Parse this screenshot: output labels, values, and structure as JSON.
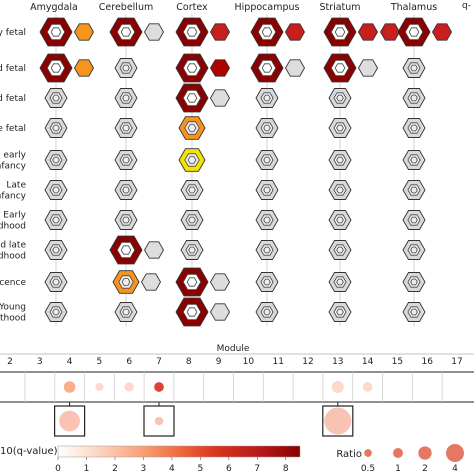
{
  "regions": [
    "Amygdala",
    "Cerebellum",
    "Cortex",
    "Hippocampus",
    "Striatum",
    "Thalamus"
  ],
  "stages": [
    "y fetal",
    "d fetal",
    "d fetal",
    "e fetal",
    "l early\nnfancy",
    "Late\nnfancy",
    "Early\ndhood",
    "d late\ndhood",
    "scence",
    "Young\nlthood"
  ],
  "top_right_label": "q-",
  "module_axis": {
    "label": "Module",
    "ticks": [
      "2",
      "3",
      "4",
      "5",
      "6",
      "7",
      "8",
      "9",
      "10",
      "11",
      "12",
      "13",
      "14",
      "15",
      "16",
      "17"
    ]
  },
  "colorbar": {
    "label": "10(q-value)",
    "ticks": [
      "0",
      "1",
      "2",
      "3",
      "4",
      "5",
      "6",
      "7",
      "8"
    ],
    "range": [
      0,
      8.5
    ],
    "stops": [
      "#ffffff",
      "#fcd5c4",
      "#f8a57c",
      "#ef6a3d",
      "#d7301f",
      "#b71a1a",
      "#8b0000"
    ]
  },
  "ratio_legend": {
    "label": "Ratio",
    "ticks": [
      "0.5",
      "1",
      "2",
      "4"
    ],
    "sizes": [
      0.5,
      1,
      2,
      4
    ]
  },
  "chart_data": {
    "type": "heatmap",
    "grid_note": "hexagon rows = developmental stages, groups = brain regions",
    "cells": [
      {
        "r": 0,
        "s": 0,
        "q": 8,
        "ring": "dark",
        "neighbors": [
          {
            "q": 5,
            "color": "#f7941d"
          }
        ]
      },
      {
        "r": 0,
        "s": 1,
        "q": 8,
        "ring": "light",
        "neighbors": [
          {
            "q": 0,
            "color": "#dddddd"
          }
        ]
      },
      {
        "r": 0,
        "s": 2,
        "q": 8,
        "ring": "dark",
        "neighbors": [
          {
            "q": 7,
            "color": "#c81e1e"
          }
        ]
      },
      {
        "r": 0,
        "s": 3,
        "q": 8,
        "ring": "dark",
        "neighbors": [
          {
            "q": 7,
            "color": "#c81e1e"
          }
        ]
      },
      {
        "r": 0,
        "s": 4,
        "q": 8,
        "ring": "light",
        "neighbors": [
          {
            "q": 7,
            "color": "#c81e1e"
          },
          {
            "q": 7,
            "color": "#c81e1e"
          }
        ]
      },
      {
        "r": 0,
        "s": 5,
        "q": 8,
        "ring": "light",
        "neighbors": [
          {
            "q": 7,
            "color": "#c81e1e"
          }
        ]
      },
      {
        "r": 1,
        "s": 0,
        "q": 8,
        "ring": "dark",
        "neighbors": [
          {
            "q": 5,
            "color": "#f7941d"
          }
        ]
      },
      {
        "r": 1,
        "s": 1,
        "q": 0,
        "ring": "light",
        "neighbors": []
      },
      {
        "r": 1,
        "s": 2,
        "q": 8,
        "ring": "dark",
        "neighbors": [
          {
            "q": 8,
            "color": "#b00000"
          }
        ]
      },
      {
        "r": 1,
        "s": 3,
        "q": 8,
        "ring": "dark",
        "neighbors": [
          {
            "q": 0,
            "color": "#dddddd"
          }
        ]
      },
      {
        "r": 1,
        "s": 4,
        "q": 8,
        "ring": "dark",
        "neighbors": [
          {
            "q": 0,
            "color": "#dddddd"
          }
        ]
      },
      {
        "r": 1,
        "s": 5,
        "q": 0,
        "ring": "light",
        "neighbors": []
      },
      {
        "r": 2,
        "s": 0,
        "q": 0,
        "neighbors": []
      },
      {
        "r": 2,
        "s": 1,
        "q": 0,
        "neighbors": []
      },
      {
        "r": 2,
        "s": 2,
        "q": 8,
        "ring": "dark",
        "neighbors": [
          {
            "q": 0,
            "color": "#dddddd"
          }
        ]
      },
      {
        "r": 2,
        "s": 3,
        "q": 0,
        "neighbors": []
      },
      {
        "r": 2,
        "s": 4,
        "q": 0,
        "neighbors": []
      },
      {
        "r": 2,
        "s": 5,
        "q": 0,
        "neighbors": []
      },
      {
        "r": 3,
        "s": 0,
        "q": 0,
        "neighbors": []
      },
      {
        "r": 3,
        "s": 1,
        "q": 0,
        "neighbors": []
      },
      {
        "r": 3,
        "s": 2,
        "q": 5,
        "ring": "orange",
        "neighbors": []
      },
      {
        "r": 3,
        "s": 3,
        "q": 0,
        "neighbors": []
      },
      {
        "r": 3,
        "s": 4,
        "q": 0,
        "neighbors": []
      },
      {
        "r": 3,
        "s": 5,
        "q": 0,
        "neighbors": []
      },
      {
        "r": 4,
        "s": 0,
        "q": 0,
        "neighbors": []
      },
      {
        "r": 4,
        "s": 1,
        "q": 0,
        "neighbors": []
      },
      {
        "r": 4,
        "s": 2,
        "q": 3,
        "ring": "yellow",
        "neighbors": []
      },
      {
        "r": 4,
        "s": 3,
        "q": 0,
        "neighbors": []
      },
      {
        "r": 4,
        "s": 4,
        "q": 0,
        "neighbors": []
      },
      {
        "r": 4,
        "s": 5,
        "q": 0,
        "neighbors": []
      },
      {
        "r": 5,
        "s": 0,
        "q": 0,
        "neighbors": []
      },
      {
        "r": 5,
        "s": 1,
        "q": 0,
        "neighbors": []
      },
      {
        "r": 5,
        "s": 2,
        "q": 0,
        "neighbors": []
      },
      {
        "r": 5,
        "s": 3,
        "q": 0,
        "neighbors": []
      },
      {
        "r": 5,
        "s": 4,
        "q": 0,
        "neighbors": []
      },
      {
        "r": 5,
        "s": 5,
        "q": 0,
        "neighbors": []
      },
      {
        "r": 6,
        "s": 0,
        "q": 0,
        "neighbors": []
      },
      {
        "r": 6,
        "s": 1,
        "q": 0,
        "neighbors": []
      },
      {
        "r": 6,
        "s": 2,
        "q": 0,
        "neighbors": []
      },
      {
        "r": 6,
        "s": 3,
        "q": 0,
        "neighbors": []
      },
      {
        "r": 6,
        "s": 4,
        "q": 0,
        "neighbors": []
      },
      {
        "r": 6,
        "s": 5,
        "q": 0,
        "neighbors": []
      },
      {
        "r": 7,
        "s": 0,
        "q": 0,
        "neighbors": []
      },
      {
        "r": 7,
        "s": 1,
        "q": 8,
        "ring": "dark",
        "neighbors": [
          {
            "q": 0,
            "color": "#dddddd"
          }
        ]
      },
      {
        "r": 7,
        "s": 2,
        "q": 0,
        "neighbors": []
      },
      {
        "r": 7,
        "s": 3,
        "q": 0,
        "neighbors": []
      },
      {
        "r": 7,
        "s": 4,
        "q": 0,
        "neighbors": []
      },
      {
        "r": 7,
        "s": 5,
        "q": 0,
        "neighbors": []
      },
      {
        "r": 8,
        "s": 0,
        "q": 0,
        "neighbors": []
      },
      {
        "r": 8,
        "s": 1,
        "q": 5,
        "ring": "orange",
        "neighbors": [
          {
            "q": 0,
            "color": "#dddddd"
          }
        ]
      },
      {
        "r": 8,
        "s": 2,
        "q": 8,
        "ring": "dark",
        "neighbors": [
          {
            "q": 0,
            "color": "#dddddd"
          }
        ]
      },
      {
        "r": 8,
        "s": 3,
        "q": 0,
        "neighbors": []
      },
      {
        "r": 8,
        "s": 4,
        "q": 0,
        "neighbors": []
      },
      {
        "r": 8,
        "s": 5,
        "q": 0,
        "neighbors": []
      },
      {
        "r": 9,
        "s": 0,
        "q": 0,
        "neighbors": []
      },
      {
        "r": 9,
        "s": 1,
        "q": 0,
        "neighbors": []
      },
      {
        "r": 9,
        "s": 2,
        "q": 8,
        "ring": "dark",
        "neighbors": [
          {
            "q": 0,
            "color": "#dddddd"
          }
        ]
      },
      {
        "r": 9,
        "s": 3,
        "q": 0,
        "neighbors": []
      },
      {
        "r": 9,
        "s": 4,
        "q": 0,
        "neighbors": []
      },
      {
        "r": 9,
        "s": 5,
        "q": 0,
        "neighbors": []
      }
    ],
    "module_dots": [
      {
        "module": "2",
        "ratio": 0.3,
        "q": 0.5
      },
      {
        "module": "3",
        "ratio": 0.3,
        "q": 0.5
      },
      {
        "module": "4",
        "ratio": 1.6,
        "q": 2.5
      },
      {
        "module": "5",
        "ratio": 0.5,
        "q": 0.8
      },
      {
        "module": "6",
        "ratio": 0.8,
        "q": 1
      },
      {
        "module": "7",
        "ratio": 0.9,
        "q": 6
      },
      {
        "module": "8",
        "ratio": 0.4,
        "q": 0.6
      },
      {
        "module": "9",
        "ratio": 0.3,
        "q": 0.5
      },
      {
        "module": "10",
        "ratio": 0.3,
        "q": 0.5
      },
      {
        "module": "11",
        "ratio": 0.3,
        "q": 0.5
      },
      {
        "module": "12",
        "ratio": 0.3,
        "q": 0.5
      },
      {
        "module": "13",
        "ratio": 1.8,
        "q": 1.5
      },
      {
        "module": "14",
        "ratio": 0.9,
        "q": 1
      },
      {
        "module": "15",
        "ratio": 0.5,
        "q": 0.6
      },
      {
        "module": "16",
        "ratio": 0.3,
        "q": 0.5
      },
      {
        "module": "17",
        "ratio": 0.3,
        "q": 0.5
      }
    ],
    "highlight_boxes": [
      {
        "module": "4",
        "ratio": 2.2,
        "q": 1
      },
      {
        "module": "7",
        "ratio": 0.2,
        "q": 0.5
      },
      {
        "module": "13",
        "ratio": 4,
        "q": 1.5
      }
    ]
  }
}
